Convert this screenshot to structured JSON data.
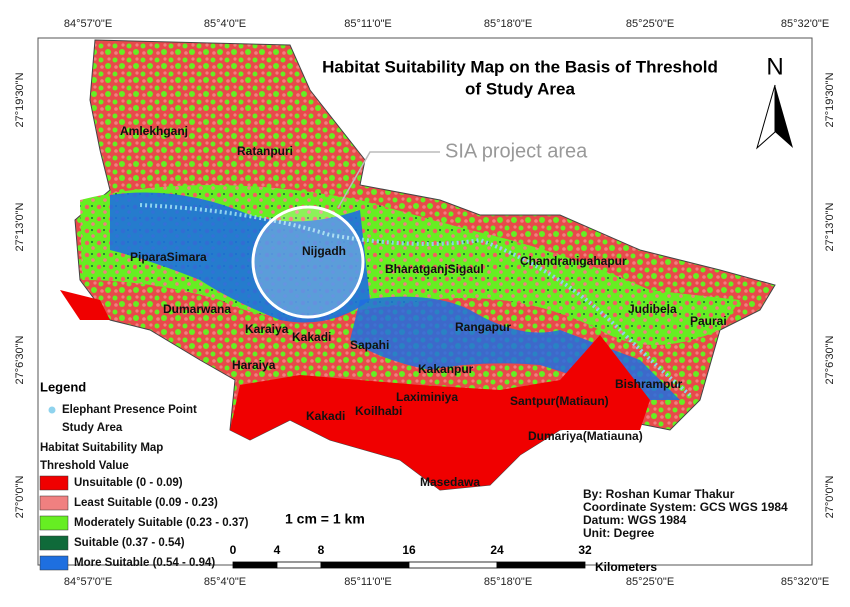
{
  "title": [
    "Habitat Suitability Map on the Basis of Threshold",
    "of Study Area"
  ],
  "north_arrow": "N",
  "callout": "SIA project area",
  "coordinates": {
    "top": [
      "84°57'0\"E",
      "85°4'0\"E",
      "85°11'0\"E",
      "85°18'0\"E",
      "85°25'0\"E",
      "85°32'0\"E"
    ],
    "bottom": [
      "84°57'0\"E",
      "85°4'0\"E",
      "85°11'0\"E",
      "85°18'0\"E",
      "85°25'0\"E",
      "85°32'0\"E"
    ],
    "left": [
      "27°19'30\"N",
      "27°13'0\"N",
      "27°6'30\"N",
      "27°0'0\"N"
    ],
    "right": [
      "27°19'30\"N",
      "27°13'0\"N",
      "27°6'30\"N",
      "27°0'0\"N"
    ]
  },
  "places": [
    "Amlekhganj",
    "Ratanpuri",
    "Nijgadh",
    "PiparaSimara",
    "Dumarwana",
    "BharatganjSigaul",
    "Chandranigahapur",
    "Judibela",
    "Paurai",
    "Rangapur",
    "Karaiya",
    "Kakadi",
    "Sapahi",
    "Haraiya",
    "Kakanpur",
    "Laximiniya",
    "Bishrampur",
    "Santpur(Matiaun)",
    "Kakadi",
    "Koilhabi",
    "Dumariya(Matiauna)",
    "Masedawa"
  ],
  "legend": {
    "title": "Legend",
    "point": "Elephant Presence Point",
    "area": "Study Area",
    "map_title": "Habitat Suitability Map",
    "threshold_title": "Threshold Value",
    "classes": [
      {
        "label": "Unsuitable (0 - 0.09)",
        "color": "#f00000"
      },
      {
        "label": "Least Suitable (0.09 - 0.23)",
        "color": "#f08080"
      },
      {
        "label": "Moderately Suitable (0.23 - 0.37)",
        "color": "#66ee22"
      },
      {
        "label": "Suitable (0.37 - 0.54)",
        "color": "#0f6a3a"
      },
      {
        "label": "More Suitable (0.54 - 0.94)",
        "color": "#1e6fe0"
      }
    ]
  },
  "scale": {
    "text": "1 cm = 1 km",
    "ticks": [
      0,
      4,
      8,
      16,
      24,
      32
    ],
    "unit": "Kilometers"
  },
  "credits": [
    "By: Roshan Kumar Thakur",
    "Coordinate System: GCS WGS 1984",
    "Datum: WGS 1984",
    "Unit: Degree"
  ]
}
